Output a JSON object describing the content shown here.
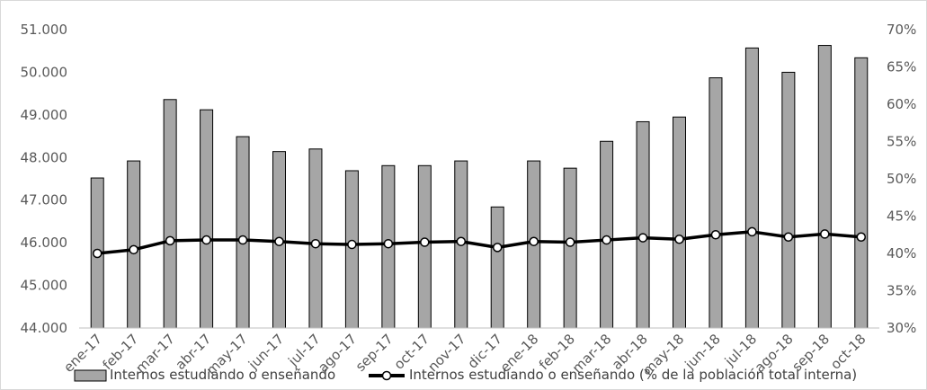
{
  "chart_data": {
    "type": "bar",
    "categories": [
      "ene-17",
      "feb-17",
      "mar-17",
      "abr-17",
      "may-17",
      "jun-17",
      "jul-17",
      "ago-17",
      "sep-17",
      "oct-17",
      "nov-17",
      "dic-17",
      "ene-18",
      "feb-18",
      "mar-18",
      "abr-18",
      "may-18",
      "jun-18",
      "jul-18",
      "ago-18",
      "sep-18",
      "oct-18"
    ],
    "series": [
      {
        "name": "Internos estudiando o enseñando",
        "type": "bar",
        "axis": "left",
        "color": "#a6a6a6",
        "values": [
          47520,
          47920,
          49360,
          49120,
          48490,
          48140,
          48200,
          47690,
          47810,
          47810,
          47920,
          46840,
          47920,
          47750,
          48380,
          48840,
          48950,
          49870,
          50570,
          50000,
          50630,
          50340
        ]
      },
      {
        "name": "Internos estudiando o enseñando (% de la población total interna)",
        "type": "line",
        "axis": "right",
        "color": "#000000",
        "values": [
          40.0,
          40.5,
          41.7,
          41.8,
          41.8,
          41.6,
          41.3,
          41.2,
          41.3,
          41.5,
          41.6,
          40.8,
          41.6,
          41.5,
          41.8,
          42.1,
          41.9,
          42.5,
          42.9,
          42.2,
          42.6,
          42.2
        ]
      }
    ],
    "y_left": {
      "min": 44000,
      "max": 51000,
      "step": 1000,
      "tick_labels": [
        "44.000",
        "45.000",
        "46.000",
        "47.000",
        "48.000",
        "49.000",
        "50.000",
        "51.000"
      ]
    },
    "y_right": {
      "min": 30,
      "max": 70,
      "step": 5,
      "tick_labels": [
        "30%",
        "35%",
        "40%",
        "45%",
        "50%",
        "55%",
        "60%",
        "65%",
        "70%"
      ]
    },
    "grid": false,
    "legend": "bottom"
  }
}
